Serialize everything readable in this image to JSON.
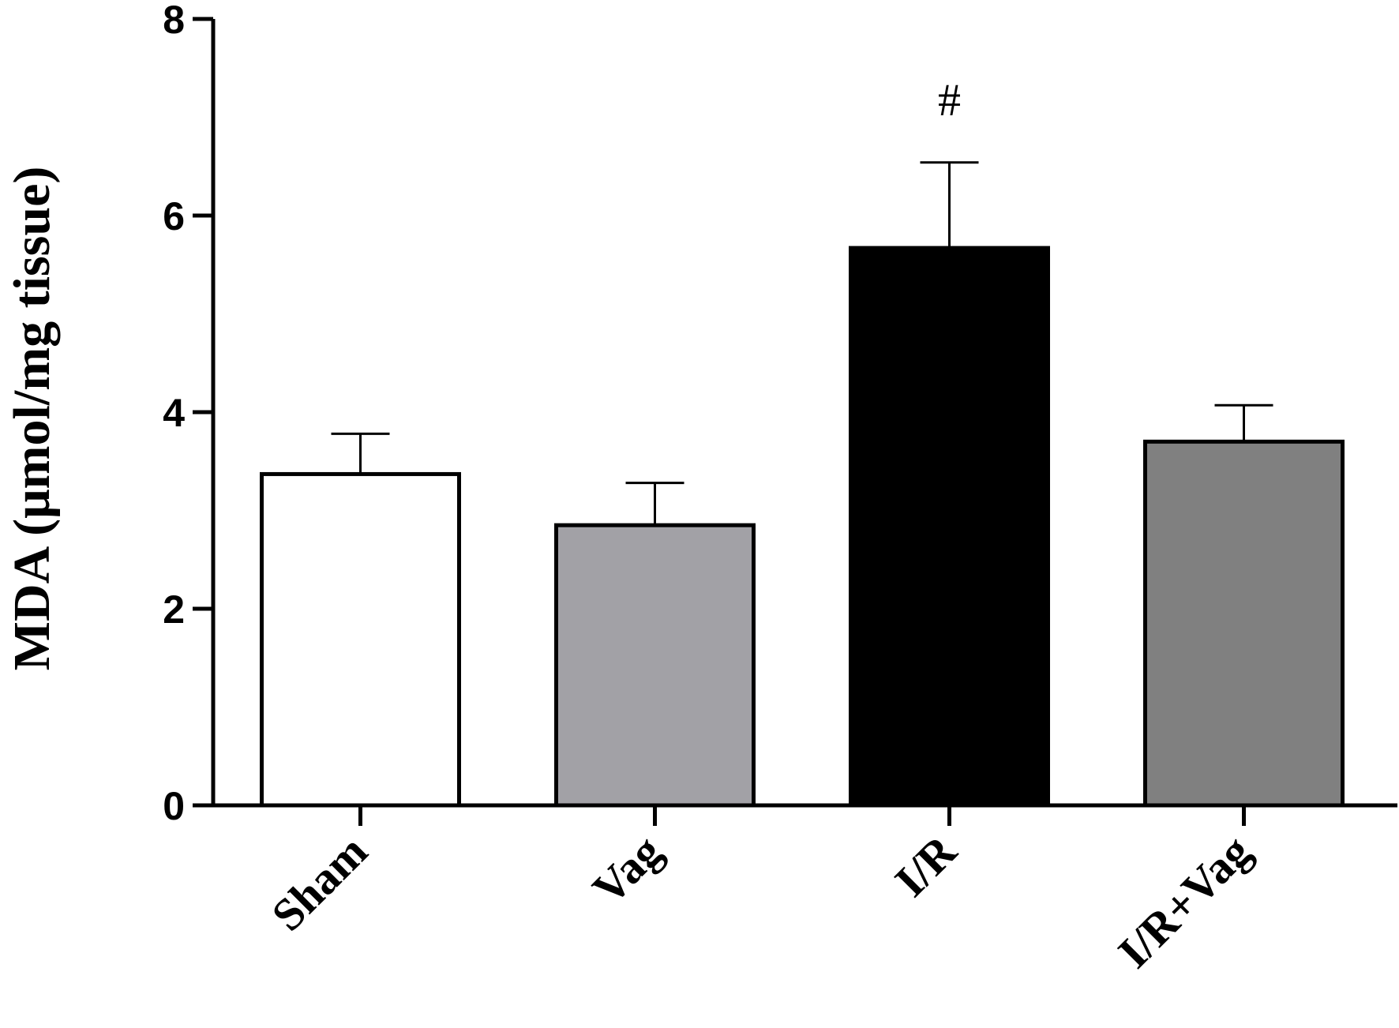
{
  "chart_data": {
    "type": "bar",
    "categories": [
      "Sham",
      "Vag",
      "I/R",
      "I/R+Vag"
    ],
    "values": [
      3.37,
      2.85,
      5.67,
      3.7
    ],
    "errors": [
      0.41,
      0.43,
      0.87,
      0.37
    ],
    "colors": [
      "#ffffff",
      "#a2a1a6",
      "#000000",
      "#808080"
    ],
    "annotations": [
      "",
      "",
      "#",
      ""
    ],
    "title": "",
    "xlabel": "",
    "ylabel": "MDA (μmol/mg tissue)",
    "ylim": [
      0,
      8
    ],
    "yticks": [
      "0",
      "2",
      "4",
      "6",
      "8"
    ],
    "grid": false
  }
}
